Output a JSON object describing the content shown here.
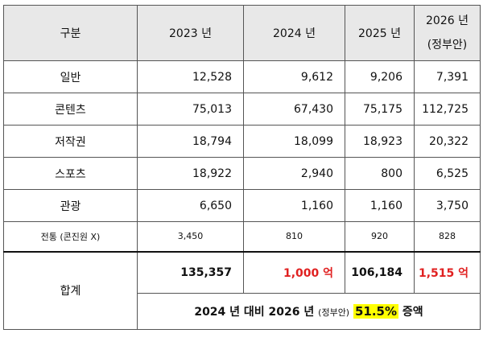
{
  "header": {
    "col0": "구분",
    "col1": "2023 년",
    "col2": "2024 년",
    "col3": "2025 년",
    "col4_line1": "2026 년",
    "col4_line2": "(정부안)"
  },
  "rows": [
    {
      "label": "일반",
      "v2023": "12,528",
      "v2024": "9,612",
      "v2025": "9,206",
      "v2026": "7,391"
    },
    {
      "label": "콘텐츠",
      "v2023": "75,013",
      "v2024": "67,430",
      "v2025": "75,175",
      "v2026": "112,725"
    },
    {
      "label": "저작권",
      "v2023": "18,794",
      "v2024": "18,099",
      "v2025": "18,923",
      "v2026": "20,322"
    },
    {
      "label": "스포츠",
      "v2023": "18,922",
      "v2024": "2,940",
      "v2025": "800",
      "v2026": "6,525"
    },
    {
      "label": "관광",
      "v2023": "6,650",
      "v2024": "1,160",
      "v2025": "1,160",
      "v2026": "3,750"
    },
    {
      "label": "전통 (콘진원 X)",
      "v2023": "3,450",
      "v2024": "810",
      "v2025": "920",
      "v2026": "828"
    }
  ],
  "total": {
    "label": "합계",
    "v2023": "135,357",
    "v2024": "1,000 억",
    "v2025": "106,184",
    "v2026": "1,515 억"
  },
  "summary": {
    "text_a": "2024 년 대비 2026 년",
    "text_small": "(정부안)",
    "text_pct": "51.5%",
    "text_end": "증액"
  },
  "colors": {
    "header_bg": "#e8e8e8",
    "highlight_red": "#e02020",
    "highlight_yellow": "#ffff00"
  }
}
